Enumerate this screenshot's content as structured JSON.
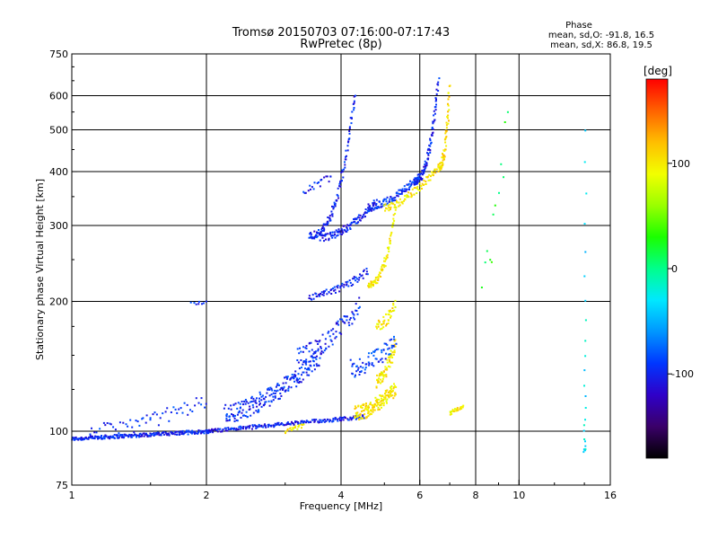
{
  "header": {
    "title": "Tromsø 20150703 07:16:00-07:17:43",
    "subtitle": "RwPretec (8p)"
  },
  "phase_box": {
    "heading": "Phase",
    "line_o": "mean, sd,O: -91.8, 16.5",
    "line_x": "mean, sd,X:  86.8, 19.5"
  },
  "colorbar": {
    "label": "[deg]",
    "range": [
      -180,
      180
    ],
    "ticks": [
      100,
      0,
      -100
    ],
    "tick_labels": [
      "100",
      "0",
      "-100"
    ],
    "colors": [
      "#000000",
      "#3a0069",
      "#2f00c8",
      "#0036ff",
      "#0096ff",
      "#00e8ff",
      "#00ff8c",
      "#1bff00",
      "#9aff00",
      "#f2ff00",
      "#ffbe00",
      "#ff6200",
      "#ff0000"
    ]
  },
  "chart_data": {
    "type": "scatter",
    "title": "Tromsø 20150703 07:16:00-07:17:43",
    "subtitle": "RwPretec (8p)",
    "xlabel": "Frequency [MHz]",
    "ylabel": "Stationary phase Virtual Height [km]",
    "xscale": "log",
    "yscale": "log",
    "xlim": [
      1,
      16
    ],
    "ylim": [
      75,
      750
    ],
    "xticks": [
      1,
      2,
      4,
      6,
      8,
      10,
      16
    ],
    "xtick_labels": [
      "1",
      "2",
      "4",
      "6",
      "8",
      "10",
      "16"
    ],
    "yticks": [
      75,
      100,
      200,
      300,
      400,
      500,
      600,
      750
    ],
    "ytick_labels": [
      "75",
      "100",
      "200",
      "300",
      "400",
      "500",
      "600",
      "750"
    ],
    "grid": true,
    "colorbar_label": "[deg]",
    "traces": [
      {
        "f0": 1.0,
        "f1": 2.05,
        "h0": 96,
        "h1": 100,
        "phase": -100,
        "spread": 0.01,
        "n": 240,
        "curve": "flat"
      },
      {
        "f0": 2.0,
        "f1": 4.5,
        "h0": 100,
        "h1": 108,
        "phase": -100,
        "spread": 0.01,
        "n": 200,
        "curve": "flat"
      },
      {
        "f0": 1.1,
        "f1": 2.0,
        "h0": 100,
        "h1": 118,
        "phase": -95,
        "spread": 0.04,
        "n": 60,
        "curve": "rise"
      },
      {
        "f0": 2.2,
        "f1": 3.6,
        "h0": 110,
        "h1": 150,
        "phase": -95,
        "spread": 0.05,
        "n": 220,
        "curve": "rise"
      },
      {
        "f0": 3.2,
        "f1": 4.4,
        "h0": 150,
        "h1": 195,
        "phase": -100,
        "spread": 0.05,
        "n": 90,
        "curve": "rise"
      },
      {
        "f0": 3.0,
        "f1": 3.3,
        "h0": 100,
        "h1": 103,
        "phase": 100,
        "spread": 0.01,
        "n": 20,
        "curve": "flat"
      },
      {
        "f0": 3.4,
        "f1": 4.6,
        "h0": 205,
        "h1": 235,
        "phase": -100,
        "spread": 0.02,
        "n": 70,
        "curve": "rise"
      },
      {
        "f0": 3.6,
        "f1": 4.8,
        "h0": 280,
        "h1": 340,
        "phase": -100,
        "spread": 0.02,
        "n": 110,
        "curve": "rise"
      },
      {
        "f0": 4.6,
        "f1": 6.0,
        "h0": 330,
        "h1": 390,
        "phase": -95,
        "spread": 0.02,
        "n": 100,
        "curve": "rise"
      },
      {
        "f0": 5.8,
        "f1": 6.6,
        "h0": 380,
        "h1": 650,
        "phase": -100,
        "spread": 0.02,
        "n": 110,
        "curve": "steep"
      },
      {
        "f0": 3.4,
        "f1": 4.3,
        "h0": 285,
        "h1": 610,
        "phase": -100,
        "spread": 0.02,
        "n": 120,
        "curve": "steep"
      },
      {
        "f0": 3.3,
        "f1": 3.8,
        "h0": 360,
        "h1": 390,
        "phase": -100,
        "spread": 0.02,
        "n": 20,
        "curve": "flat"
      },
      {
        "f0": 4.6,
        "f1": 5.3,
        "h0": 220,
        "h1": 330,
        "phase": 100,
        "spread": 0.02,
        "n": 80,
        "curve": "steep"
      },
      {
        "f0": 5.0,
        "f1": 6.6,
        "h0": 330,
        "h1": 410,
        "phase": 100,
        "spread": 0.02,
        "n": 80,
        "curve": "rise"
      },
      {
        "f0": 6.6,
        "f1": 7.0,
        "h0": 410,
        "h1": 630,
        "phase": 105,
        "spread": 0.02,
        "n": 70,
        "curve": "steep"
      },
      {
        "f0": 4.3,
        "f1": 5.3,
        "h0": 110,
        "h1": 126,
        "phase": 100,
        "spread": 0.04,
        "n": 150,
        "curve": "rise"
      },
      {
        "f0": 4.8,
        "f1": 5.3,
        "h0": 130,
        "h1": 160,
        "phase": 100,
        "spread": 0.04,
        "n": 70,
        "curve": "rise"
      },
      {
        "f0": 4.8,
        "f1": 5.3,
        "h0": 175,
        "h1": 195,
        "phase": 100,
        "spread": 0.03,
        "n": 40,
        "curve": "rise"
      },
      {
        "f0": 7.0,
        "f1": 7.5,
        "h0": 110,
        "h1": 114,
        "phase": 100,
        "spread": 0.01,
        "n": 25,
        "curve": "flat"
      },
      {
        "f0": 4.2,
        "f1": 5.3,
        "h0": 140,
        "h1": 160,
        "phase": -90,
        "spread": 0.05,
        "n": 70,
        "curve": "rise"
      },
      {
        "f0": 1.85,
        "f1": 2.0,
        "h0": 197,
        "h1": 199,
        "phase": -100,
        "spread": 0.01,
        "n": 8,
        "curve": "flat"
      },
      {
        "f0": 14.0,
        "f1": 14.1,
        "h0": 90,
        "h1": 500,
        "phase": -30,
        "spread": 0.01,
        "n": 25,
        "curve": "steep"
      },
      {
        "f0": 8.3,
        "f1": 9.4,
        "h0": 230,
        "h1": 540,
        "phase": 20,
        "spread": 0.1,
        "n": 12,
        "curve": "rise"
      }
    ]
  }
}
